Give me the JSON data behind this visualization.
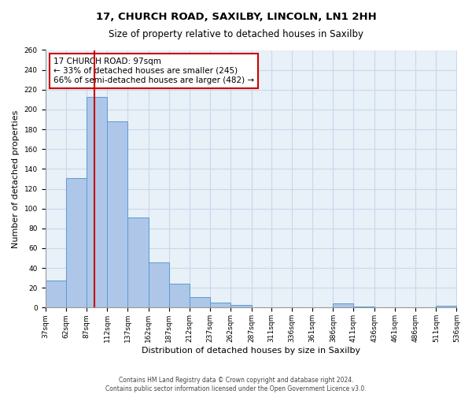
{
  "title": "17, CHURCH ROAD, SAXILBY, LINCOLN, LN1 2HH",
  "subtitle": "Size of property relative to detached houses in Saxilby",
  "xlabel": "Distribution of detached houses by size in Saxilby",
  "ylabel": "Number of detached properties",
  "bin_edges": [
    37,
    62,
    87,
    112,
    137,
    162,
    187,
    212,
    237,
    262,
    287,
    311,
    336,
    361,
    386,
    411,
    436,
    461,
    486,
    511,
    536
  ],
  "bin_labels": [
    "37sqm",
    "62sqm",
    "87sqm",
    "112sqm",
    "137sqm",
    "162sqm",
    "187sqm",
    "212sqm",
    "237sqm",
    "262sqm",
    "287sqm",
    "311sqm",
    "336sqm",
    "361sqm",
    "386sqm",
    "411sqm",
    "436sqm",
    "461sqm",
    "486sqm",
    "511sqm",
    "536sqm"
  ],
  "bar_heights": [
    27,
    131,
    213,
    188,
    91,
    46,
    24,
    11,
    5,
    3,
    0,
    0,
    0,
    0,
    4,
    1,
    0,
    0,
    0,
    2
  ],
  "bar_color": "#aec6e8",
  "bar_edge_color": "#5b9bd5",
  "red_line_x": 97,
  "annotation_title": "17 CHURCH ROAD: 97sqm",
  "annotation_line1": "← 33% of detached houses are smaller (245)",
  "annotation_line2": "66% of semi-detached houses are larger (482) →",
  "annotation_box_color": "#ffffff",
  "annotation_box_edge": "#cc0000",
  "red_line_color": "#cc0000",
  "ylim": [
    0,
    260
  ],
  "yticks": [
    0,
    20,
    40,
    60,
    80,
    100,
    120,
    140,
    160,
    180,
    200,
    220,
    240,
    260
  ],
  "grid_color": "#c8d8ec",
  "background_color": "#e8f0f8",
  "footer_line1": "Contains HM Land Registry data © Crown copyright and database right 2024.",
  "footer_line2": "Contains public sector information licensed under the Open Government Licence v3.0."
}
